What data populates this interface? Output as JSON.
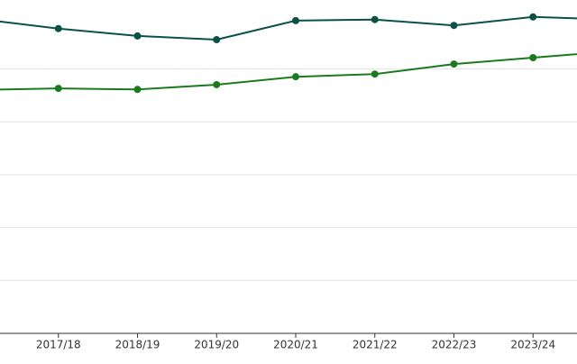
{
  "chart_data": {
    "type": "line",
    "categories": [
      null,
      "2017/18",
      "2018/19",
      "2019/20",
      "2020/21",
      "2021/22",
      "2022/23",
      "2023/24",
      null
    ],
    "series": [
      {
        "color": "#0b5148",
        "values": [
          5.94,
          5.76,
          5.62,
          5.55,
          5.91,
          5.93,
          5.82,
          5.98,
          5.93
        ]
      },
      {
        "color": "#1a7a1e",
        "values": [
          4.6,
          4.63,
          4.61,
          4.7,
          4.85,
          4.9,
          5.09,
          5.21,
          5.33
        ]
      }
    ],
    "ylim": [
      0,
      6.3
    ],
    "yticks": [
      0,
      1,
      2,
      3,
      4,
      5
    ],
    "grid": true
  }
}
